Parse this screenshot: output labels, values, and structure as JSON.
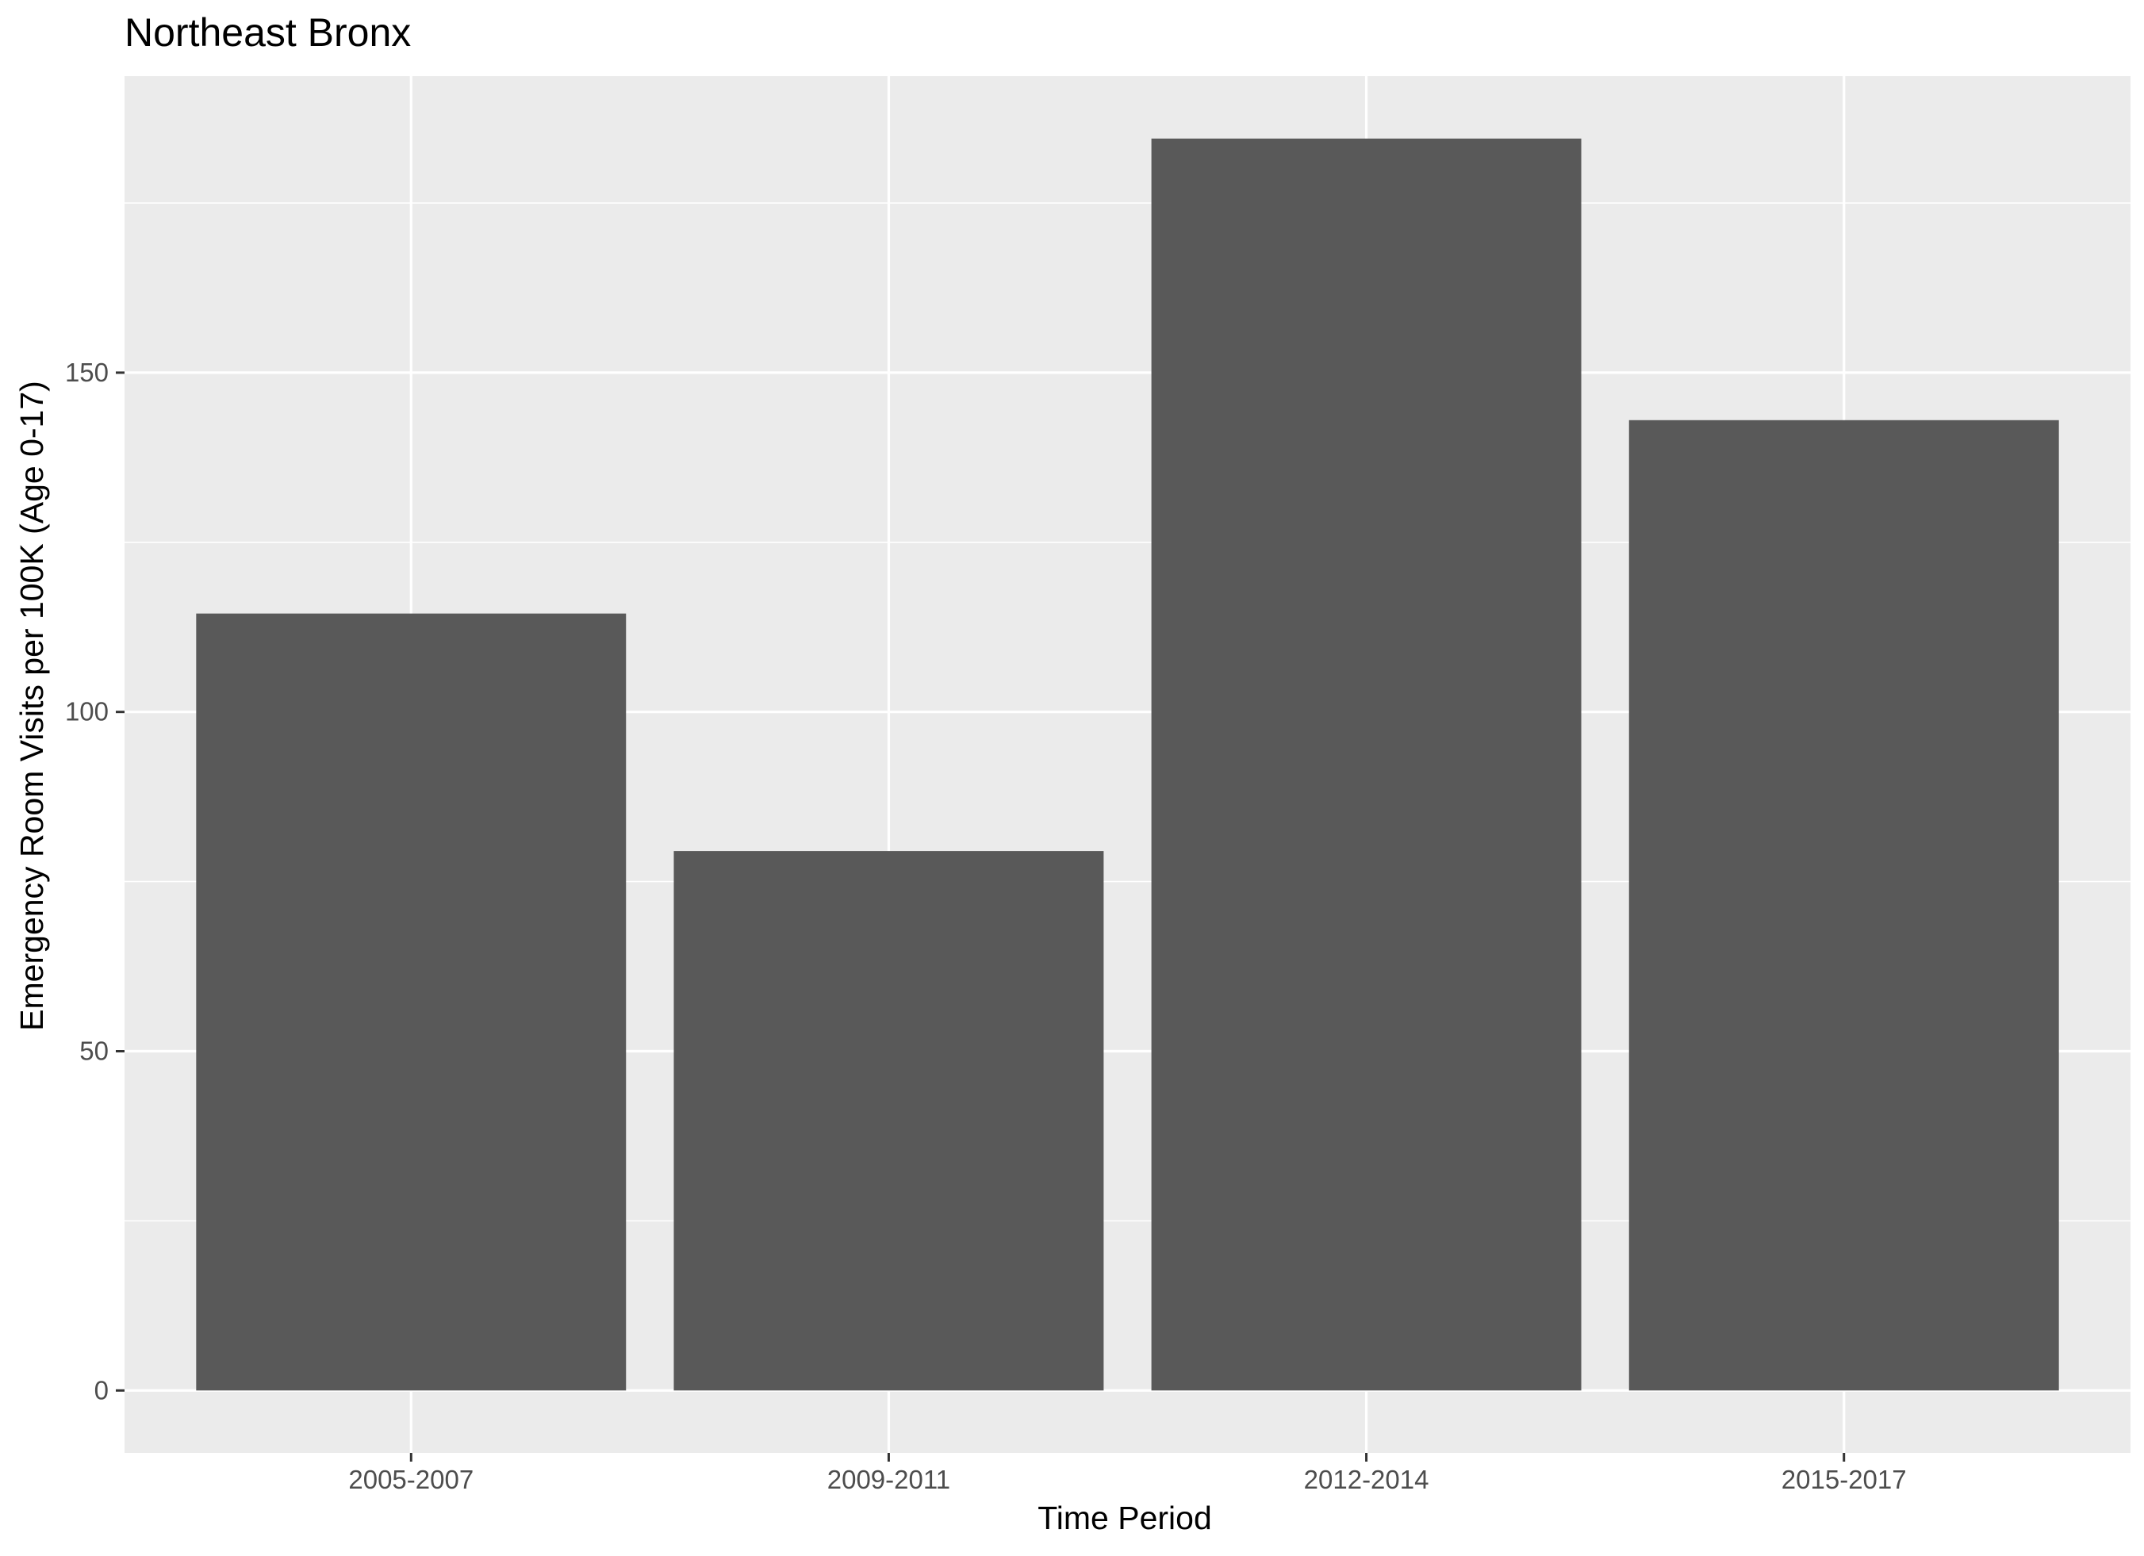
{
  "chart_data": {
    "type": "bar",
    "title": "Northeast Bronx",
    "xlabel": "Time Period",
    "ylabel": "Emergency Room Visits per 100K (Age 0-17)",
    "categories": [
      "2005-2007",
      "2009-2011",
      "2012-2014",
      "2015-2017"
    ],
    "values": [
      114.5,
      79.5,
      184.5,
      143
    ],
    "ylim": [
      -9.2,
      193.7
    ],
    "y_ticks": [
      0,
      50,
      100,
      150
    ],
    "y_tick_labels": [
      "0",
      "50",
      "100",
      "150"
    ],
    "grid": true,
    "legend": "none",
    "colors": {
      "bar": "#595959",
      "panel_background": "#ebebeb",
      "grid": "#ffffff",
      "tick": "#333333",
      "tick_label": "#4d4d4d",
      "text": "#000000"
    }
  }
}
